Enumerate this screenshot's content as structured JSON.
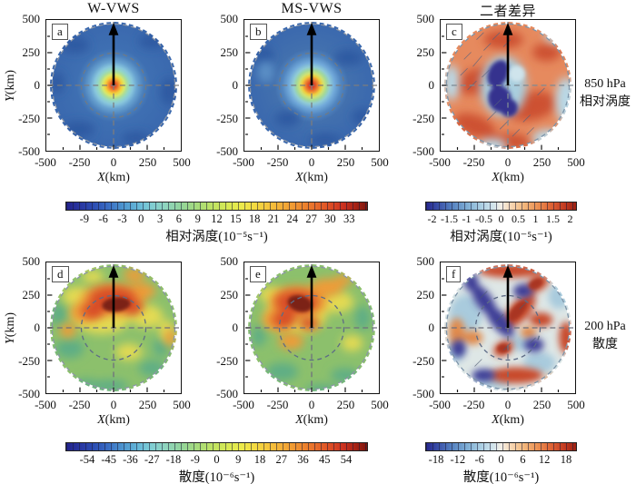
{
  "figure": {
    "panels": [
      {
        "letter": "a",
        "title": "W-VWS"
      },
      {
        "letter": "b",
        "title": "MS-VWS"
      },
      {
        "letter": "c",
        "title": "二者差异"
      },
      {
        "letter": "d",
        "title": ""
      },
      {
        "letter": "e",
        "title": ""
      },
      {
        "letter": "f",
        "title": ""
      }
    ],
    "row_labels": [
      {
        "line1": "850 hPa",
        "line2": "相对涡度"
      },
      {
        "line1": "200 hPa",
        "line2": "散度"
      }
    ],
    "axes": {
      "x_letter": "X",
      "x_unit": "(km)",
      "y_letter": "Y",
      "y_unit": "(km)",
      "x_ticks": [
        "-500",
        "-250",
        "0",
        "250",
        "500"
      ],
      "y_ticks": [
        "500",
        "250",
        "0",
        "-250",
        "-500"
      ]
    },
    "colorbars": [
      {
        "label": "相对涡度(10⁻⁵s⁻¹)",
        "scheme": "rainbow",
        "ticks": [
          "-9",
          "-6",
          "-3",
          "0",
          "3",
          "6",
          "9",
          "12",
          "15",
          "18",
          "21",
          "24",
          "27",
          "30",
          "33"
        ]
      },
      {
        "label": "相对涡度(10⁻⁵s⁻¹)",
        "scheme": "rdbu",
        "ticks": [
          "-2",
          "-1.5",
          "-1",
          "-0.5",
          "0",
          "0.5",
          "1",
          "1.5",
          "2"
        ]
      },
      {
        "label": "散度(10⁻⁶s⁻¹)",
        "scheme": "rainbow",
        "ticks": [
          "-54",
          "-45",
          "-36",
          "-27",
          "-18",
          "-9",
          "0",
          "9",
          "18",
          "27",
          "36",
          "45",
          "54"
        ]
      },
      {
        "label": "散度(10⁻⁶s⁻¹)",
        "scheme": "rdbu",
        "ticks": [
          "-18",
          "-12",
          "-6",
          "0",
          "6",
          "12",
          "18"
        ]
      }
    ]
  },
  "chart_data": [
    {
      "type": "heatmap",
      "panel": "a",
      "title": "W-VWS",
      "quantity": "850 hPa relative vorticity",
      "units": "10⁻⁵ s⁻¹",
      "x": {
        "label": "X(km)",
        "min": -500,
        "max": 500,
        "ticks": [
          -500,
          -250,
          0,
          250,
          500
        ]
      },
      "y": {
        "label": "Y(km)",
        "min": -500,
        "max": 500,
        "ticks": [
          -500,
          -250,
          0,
          250,
          500
        ]
      },
      "colorbar": {
        "ticks": [
          -9,
          -6,
          -3,
          0,
          3,
          6,
          9,
          12,
          15,
          18,
          21,
          24,
          27,
          30,
          33
        ],
        "scheme": "rainbow"
      },
      "radial_profile": {
        "radius_km": [
          0,
          50,
          100,
          150,
          200,
          250,
          350,
          500
        ],
        "value": [
          33,
          26,
          17,
          10,
          6,
          3,
          1,
          0
        ]
      },
      "annotations": [
        "black arrow from center pointing north (shear vector)",
        "grey dashed range ring at r = 250 km",
        "grey dashed crosshair through center",
        "circular analysis domain of radius 500 km"
      ]
    },
    {
      "type": "heatmap",
      "panel": "b",
      "title": "MS-VWS",
      "quantity": "850 hPa relative vorticity",
      "units": "10⁻⁵ s⁻¹",
      "x": {
        "label": "X(km)",
        "min": -500,
        "max": 500,
        "ticks": [
          -500,
          -250,
          0,
          250,
          500
        ]
      },
      "y": {
        "label": "Y(km)",
        "min": -500,
        "max": 500,
        "ticks": [
          -500,
          -250,
          0,
          250,
          500
        ]
      },
      "colorbar": {
        "ticks": [
          -9,
          -6,
          -3,
          0,
          3,
          6,
          9,
          12,
          15,
          18,
          21,
          24,
          27,
          30,
          33
        ],
        "scheme": "rainbow"
      },
      "radial_profile": {
        "radius_km": [
          0,
          50,
          100,
          150,
          200,
          250,
          350,
          500
        ],
        "value": [
          34,
          27,
          18,
          11,
          6,
          3,
          1,
          0
        ]
      },
      "annotations": [
        "black arrow from center pointing north (shear vector)",
        "grey dashed range ring at r = 250 km",
        "grey dashed crosshair through center"
      ]
    },
    {
      "type": "heatmap",
      "panel": "c",
      "title": "二者差异",
      "quantity": "difference of 850 hPa relative vorticity (W-VWS minus MS-VWS)",
      "units": "10⁻⁵ s⁻¹",
      "x": {
        "label": "X(km)",
        "min": -500,
        "max": 500,
        "ticks": [
          -500,
          -250,
          0,
          250,
          500
        ]
      },
      "y": {
        "label": "Y(km)",
        "min": -500,
        "max": 500,
        "ticks": [
          -500,
          -250,
          0,
          250,
          500
        ]
      },
      "colorbar": {
        "ticks": [
          -2,
          -1.5,
          -1,
          -0.5,
          0,
          0.5,
          1,
          1.5,
          2
        ],
        "scheme": "rdbu"
      },
      "features": [
        "dark-blue negative core about -2 just west/south of center",
        "positive differences +0.5 to +2 over most of the outer domain",
        "weak negative (light blue) patches near eastern and southwestern rim",
        "diagonal hatching over upper-left quadrant and south of center (significance)"
      ]
    },
    {
      "type": "heatmap",
      "panel": "d",
      "title": "",
      "quantity": "200 hPa divergence (W-VWS)",
      "units": "10⁻⁶ s⁻¹",
      "x": {
        "label": "X(km)",
        "min": -500,
        "max": 500,
        "ticks": [
          -500,
          -250,
          0,
          250,
          500
        ]
      },
      "y": {
        "label": "Y(km)",
        "min": -500,
        "max": 500,
        "ticks": [
          -500,
          -250,
          0,
          250,
          500
        ]
      },
      "colorbar": {
        "ticks": [
          -54,
          -45,
          -36,
          -27,
          -18,
          -9,
          0,
          9,
          18,
          27,
          36,
          45,
          54
        ],
        "scheme": "rainbow"
      },
      "features": [
        "dark-red divergence maximum about 55 near (0, +130) km, downshear of center",
        "orange/red arc over northern semicircle",
        "weak values 0 to 18 (green) over the southern half"
      ]
    },
    {
      "type": "heatmap",
      "panel": "e",
      "title": "",
      "quantity": "200 hPa divergence (MS-VWS)",
      "units": "10⁻⁶ s⁻¹",
      "x": {
        "label": "X(km)",
        "min": -500,
        "max": 500,
        "ticks": [
          -500,
          -250,
          0,
          250,
          500
        ]
      },
      "y": {
        "label": "Y(km)",
        "min": -500,
        "max": 500,
        "ticks": [
          -500,
          -250,
          0,
          250,
          500
        ]
      },
      "colorbar": {
        "ticks": [
          -54,
          -45,
          -36,
          -27,
          -18,
          -9,
          0,
          9,
          18,
          27,
          36,
          45,
          54
        ],
        "scheme": "rainbow"
      },
      "features": [
        "dark-red divergence maximum about 55 near (-60, +130) km (down-left of shear)",
        "red/orange band extending west and equatorward of the maximum",
        "weak values 0 to 18 (green) over the southern half"
      ]
    },
    {
      "type": "heatmap",
      "panel": "f",
      "title": "",
      "quantity": "difference of 200 hPa divergence (W-VWS minus MS-VWS)",
      "units": "10⁻⁶ s⁻¹",
      "x": {
        "label": "X(km)",
        "min": -500,
        "max": 500,
        "ticks": [
          -500,
          -250,
          0,
          250,
          500
        ]
      },
      "y": {
        "label": "Y(km)",
        "min": -500,
        "max": 500,
        "ticks": [
          -500,
          -250,
          0,
          250,
          500
        ]
      },
      "colorbar": {
        "ticks": [
          -18,
          -12,
          -6,
          0,
          6,
          12,
          18
        ],
        "scheme": "rdbu"
      },
      "features": [
        "alternating NW-SE oriented positive (red, up to +18) and negative (blue, to -18) bands",
        "strongest dipole straddling the center inside the 250 km ring",
        "sparse diagonal hatching over the strongest bands (significance)"
      ]
    }
  ]
}
